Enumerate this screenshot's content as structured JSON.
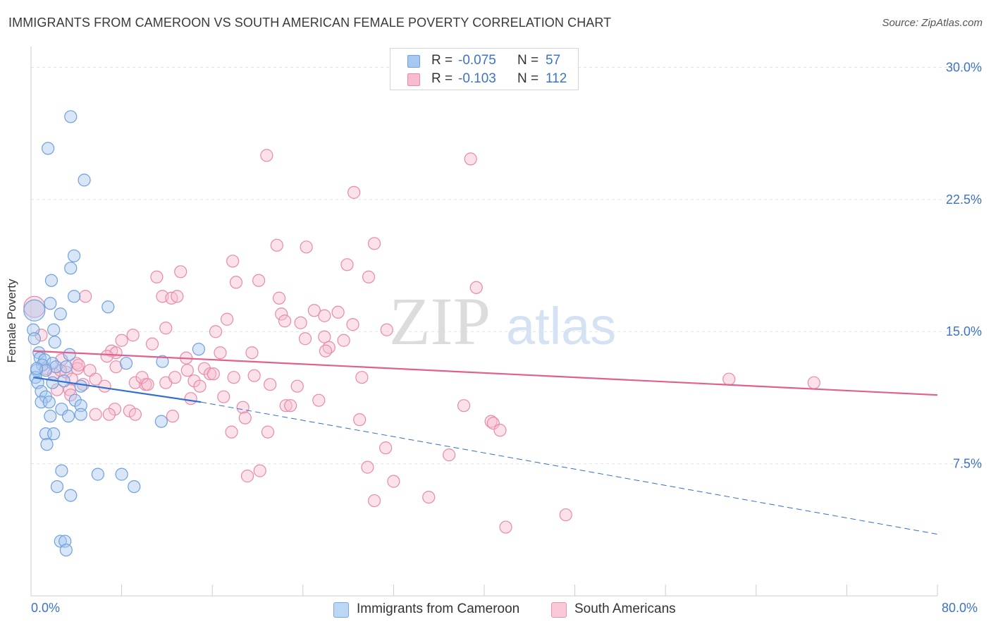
{
  "header": {
    "title": "IMMIGRANTS FROM CAMEROON VS SOUTH AMERICAN FEMALE POVERTY CORRELATION CHART",
    "source": "Source: ZipAtlas.com"
  },
  "watermark": {
    "zip": "ZIP",
    "atlas": "atlas"
  },
  "stats": {
    "r_label": "R =",
    "n_label": "N =",
    "rows": [
      {
        "r": "-0.075",
        "n": "57",
        "color": "#a8c8f0",
        "border": "#6fa0dc"
      },
      {
        "r": "-0.103",
        "n": "112",
        "color": "#f7bcd0",
        "border": "#e88aa8"
      }
    ]
  },
  "legend": {
    "items": [
      {
        "label": "Immigrants from Cameroon",
        "color": "#bcd6f5",
        "border": "#7aa7df"
      },
      {
        "label": "South Americans",
        "color": "#f9c9d8",
        "border": "#e992ae"
      }
    ]
  },
  "chart_data": {
    "type": "scatter",
    "title": "IMMIGRANTS FROM CAMEROON VS SOUTH AMERICAN FEMALE POVERTY CORRELATION CHART",
    "xlabel": "",
    "ylabel": "Female Poverty",
    "xlim": [
      0,
      80
    ],
    "ylim": [
      0,
      31.5
    ],
    "x_tick_labels": [
      "0.0%",
      "80.0%"
    ],
    "y_ticks": [
      7.5,
      15.0,
      22.5,
      30.0
    ],
    "y_tick_labels": [
      "7.5%",
      "15.0%",
      "22.5%",
      "30.0%"
    ],
    "grid": true,
    "legend_position": "bottom",
    "colors": {
      "blue": "#6fa0dc",
      "blue_line": "#2f6fd1",
      "pink": "#e88aa8",
      "pink_line": "#e0608e"
    },
    "series": [
      {
        "name": "Immigrants from Cameroon",
        "trend": {
          "solid": [
            [
              0.2,
              12.4
            ],
            [
              15.0,
              11.0
            ]
          ],
          "dashed": [
            [
              15.0,
              11.0
            ],
            [
              80.0,
              3.5
            ]
          ]
        },
        "points": [
          [
            3.5,
            27.2
          ],
          [
            1.5,
            25.4
          ],
          [
            4.7,
            23.6
          ],
          [
            3.8,
            19.3
          ],
          [
            3.5,
            18.6
          ],
          [
            1.8,
            17.9
          ],
          [
            3.8,
            17.0
          ],
          [
            6.8,
            16.4
          ],
          [
            1.7,
            16.6
          ],
          [
            2.6,
            16.0
          ],
          [
            0.2,
            15.1
          ],
          [
            2.0,
            15.1
          ],
          [
            2.1,
            14.4
          ],
          [
            0.3,
            14.6
          ],
          [
            0.7,
            13.8
          ],
          [
            3.4,
            13.7
          ],
          [
            0.8,
            13.5
          ],
          [
            1.2,
            13.4
          ],
          [
            1.0,
            13.1
          ],
          [
            1.9,
            13.2
          ],
          [
            2.2,
            13.0
          ],
          [
            3.1,
            13.0
          ],
          [
            0.5,
            12.8
          ],
          [
            1.3,
            12.8
          ],
          [
            0.4,
            12.4
          ],
          [
            8.4,
            13.2
          ],
          [
            11.6,
            13.3
          ],
          [
            14.8,
            14.0
          ],
          [
            0.6,
            12.1
          ],
          [
            1.9,
            12.1
          ],
          [
            2.9,
            12.2
          ],
          [
            4.4,
            11.9
          ],
          [
            0.9,
            11.6
          ],
          [
            1.3,
            11.3
          ],
          [
            0.9,
            11.0
          ],
          [
            1.6,
            11.0
          ],
          [
            3.9,
            11.1
          ],
          [
            4.4,
            10.8
          ],
          [
            2.7,
            10.6
          ],
          [
            1.7,
            10.2
          ],
          [
            3.3,
            10.2
          ],
          [
            4.4,
            10.3
          ],
          [
            11.5,
            9.9
          ],
          [
            1.3,
            9.2
          ],
          [
            2.0,
            9.2
          ],
          [
            1.4,
            8.6
          ],
          [
            2.7,
            7.1
          ],
          [
            5.9,
            6.9
          ],
          [
            8.0,
            6.9
          ],
          [
            2.3,
            6.2
          ],
          [
            9.1,
            6.2
          ],
          [
            3.5,
            5.7
          ],
          [
            2.6,
            3.1
          ],
          [
            3.0,
            3.1
          ],
          [
            3.1,
            2.6
          ],
          [
            0.3,
            16.2
          ],
          [
            0.5,
            12.9
          ]
        ]
      },
      {
        "name": "South Americans",
        "trend": {
          "solid": [
            [
              0.2,
              13.9
            ],
            [
              80.0,
              11.4
            ]
          ]
        },
        "points": [
          [
            20.8,
            25.0
          ],
          [
            38.8,
            24.8
          ],
          [
            28.5,
            22.9
          ],
          [
            21.7,
            19.9
          ],
          [
            24.3,
            19.8
          ],
          [
            30.3,
            20.0
          ],
          [
            17.8,
            19.0
          ],
          [
            27.9,
            18.8
          ],
          [
            13.2,
            18.4
          ],
          [
            11.1,
            18.1
          ],
          [
            18.1,
            17.8
          ],
          [
            20.1,
            17.9
          ],
          [
            29.8,
            18.1
          ],
          [
            39.3,
            17.5
          ],
          [
            4.8,
            17.0
          ],
          [
            11.6,
            17.0
          ],
          [
            12.4,
            16.9
          ],
          [
            12.9,
            17.0
          ],
          [
            21.9,
            16.9
          ],
          [
            17.3,
            15.7
          ],
          [
            22.1,
            16.0
          ],
          [
            22.4,
            15.6
          ],
          [
            23.8,
            15.5
          ],
          [
            25.0,
            16.2
          ],
          [
            27.1,
            16.1
          ],
          [
            25.9,
            15.9
          ],
          [
            28.4,
            15.4
          ],
          [
            31.4,
            15.1
          ],
          [
            11.9,
            15.2
          ],
          [
            16.3,
            15.0
          ],
          [
            9.0,
            14.8
          ],
          [
            8.0,
            14.5
          ],
          [
            10.7,
            14.3
          ],
          [
            24.2,
            14.6
          ],
          [
            25.9,
            14.7
          ],
          [
            26.3,
            14.1
          ],
          [
            27.6,
            14.5
          ],
          [
            7.1,
            13.9
          ],
          [
            7.5,
            13.8
          ],
          [
            6.7,
            13.6
          ],
          [
            13.7,
            13.5
          ],
          [
            16.7,
            13.8
          ],
          [
            19.5,
            13.8
          ],
          [
            2.7,
            13.4
          ],
          [
            4.0,
            13.2
          ],
          [
            7.5,
            13.0
          ],
          [
            5.2,
            12.8
          ],
          [
            3.1,
            12.7
          ],
          [
            2.0,
            12.6
          ],
          [
            4.1,
            12.9
          ],
          [
            13.8,
            12.8
          ],
          [
            15.3,
            12.9
          ],
          [
            15.8,
            12.6
          ],
          [
            16.1,
            12.6
          ],
          [
            3.6,
            12.3
          ],
          [
            5.7,
            12.3
          ],
          [
            9.2,
            12.1
          ],
          [
            10.1,
            12.0
          ],
          [
            11.9,
            12.1
          ],
          [
            14.4,
            12.2
          ],
          [
            19.7,
            12.5
          ],
          [
            21.1,
            12.0
          ],
          [
            23.5,
            11.9
          ],
          [
            29.2,
            12.4
          ],
          [
            3.4,
            11.7
          ],
          [
            4.6,
            12.0
          ],
          [
            6.5,
            11.9
          ],
          [
            14.9,
            11.9
          ],
          [
            2.3,
            11.7
          ],
          [
            3.5,
            11.4
          ],
          [
            17.0,
            11.3
          ],
          [
            14.1,
            11.2
          ],
          [
            22.5,
            10.8
          ],
          [
            22.9,
            10.8
          ],
          [
            25.4,
            11.1
          ],
          [
            7.4,
            10.6
          ],
          [
            6.9,
            10.3
          ],
          [
            5.7,
            10.3
          ],
          [
            8.7,
            10.5
          ],
          [
            9.2,
            10.3
          ],
          [
            12.5,
            10.2
          ],
          [
            18.7,
            10.7
          ],
          [
            18.9,
            10.1
          ],
          [
            29.0,
            10.0
          ],
          [
            38.2,
            10.8
          ],
          [
            40.6,
            9.9
          ],
          [
            40.8,
            9.8
          ],
          [
            17.7,
            9.3
          ],
          [
            20.9,
            9.3
          ],
          [
            41.4,
            9.4
          ],
          [
            31.3,
            8.4
          ],
          [
            36.9,
            8.0
          ],
          [
            29.7,
            7.3
          ],
          [
            20.2,
            7.1
          ],
          [
            19.1,
            6.8
          ],
          [
            32.0,
            6.5
          ],
          [
            35.1,
            5.6
          ],
          [
            30.3,
            5.4
          ],
          [
            41.9,
            3.9
          ],
          [
            47.2,
            4.6
          ],
          [
            61.6,
            12.3
          ],
          [
            69.1,
            12.1
          ],
          [
            0.3,
            16.4
          ],
          [
            0.9,
            14.8
          ],
          [
            1.3,
            12.9
          ],
          [
            2.6,
            12.8
          ],
          [
            17.9,
            12.4
          ],
          [
            26.0,
            13.9
          ],
          [
            4.2,
            13.1
          ],
          [
            9.8,
            12.4
          ],
          [
            10.3,
            12.0
          ],
          [
            12.7,
            12.4
          ]
        ]
      }
    ]
  }
}
